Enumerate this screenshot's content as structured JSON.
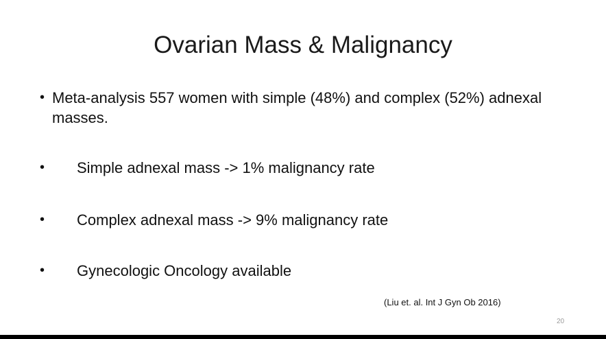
{
  "slide": {
    "title": "Ovarian Mass & Malignancy",
    "bullets": [
      {
        "marker": "•",
        "text": "Meta-analysis 557 women with simple (48%) and complex (52%) adnexal masses."
      },
      {
        "marker": "•",
        "text": "Simple adnexal mass -> 1% malignancy rate"
      },
      {
        "marker": "•",
        "text": "Complex adnexal mass -> 9% malignancy rate"
      },
      {
        "marker": "•",
        "text": "Gynecologic Oncology available"
      }
    ],
    "citation": "(Liu et. al. Int J Gyn Ob 2016)",
    "page_number": "20"
  }
}
